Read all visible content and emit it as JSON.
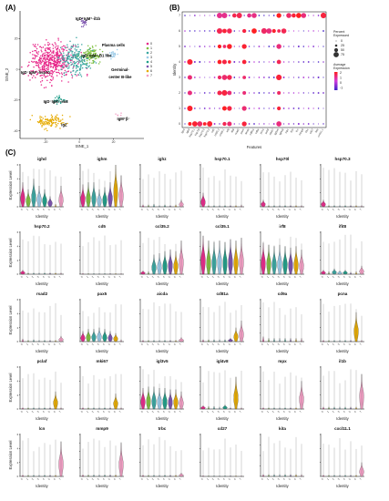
{
  "figure": {
    "panels": {
      "a": "(A)",
      "b": "(B)",
      "c": "(C)"
    }
  },
  "colors": {
    "clusters": [
      "#e7298a",
      "#7fbf3f",
      "#3aa7a1",
      "#9bcbe8",
      "#1f9e89",
      "#7b52ae",
      "#e6ab02",
      "#f29ec4"
    ],
    "expr_low": "#3b22c8",
    "expr_high": "#ff1f1f"
  },
  "chart_data": [
    {
      "type": "scatter",
      "panel": "A",
      "xlabel": "tSNE_1",
      "ylabel": "tSNE_2",
      "x_ticks": [
        "-20",
        "0",
        "20"
      ],
      "y_ticks": [
        "20",
        "0",
        "-20",
        "-40"
      ],
      "x_tick_values": [
        -20,
        0,
        20
      ],
      "y_tick_values": [
        20,
        0,
        -20,
        -40
      ],
      "xlim": [
        -35,
        38
      ],
      "ylim": [
        -45,
        38
      ],
      "legend_title": "",
      "legend": [
        "0",
        "1",
        "2",
        "3",
        "4",
        "5",
        "6",
        "7"
      ],
      "cluster_labels": [
        {
          "text": "IgD⁺IgM⁺-il1b",
          "x": 5,
          "y": 32
        },
        {
          "text": "Plasma cells",
          "x": 20,
          "y": 15
        },
        {
          "text": "IgD⁻IgM⁺-B1 like",
          "x": 10,
          "y": 8
        },
        {
          "text": "IgD⁻IgM⁺-hsp70",
          "x": -26,
          "y": -3
        },
        {
          "text": "Germinal-",
          "x": 24,
          "y": -1
        },
        {
          "text": "center B-like",
          "x": 24,
          "y": -6
        },
        {
          "text": "IgD⁻IgM⁻-im8",
          "x": -14,
          "y": -22
        },
        {
          "text": "IgM⁺β⁻",
          "x": 26,
          "y": -33
        },
        {
          "text": "IgZ",
          "x": -9,
          "y": -37
        }
      ],
      "clusters": [
        {
          "name": "0",
          "cx": -16,
          "cy": 5,
          "sx": 11,
          "sy": 10,
          "n": 480
        },
        {
          "name": "1",
          "cx": 6,
          "cy": 9,
          "sx": 5,
          "sy": 4.5,
          "n": 110
        },
        {
          "name": "2",
          "cx": -2,
          "cy": 6,
          "sx": 8,
          "sy": 8,
          "n": 200
        },
        {
          "name": "3",
          "cx": 20,
          "cy": 10,
          "sx": 2.5,
          "sy": 2.5,
          "n": 25
        },
        {
          "name": "4",
          "cx": -12,
          "cy": -20,
          "sx": 4,
          "sy": 2,
          "n": 25
        },
        {
          "name": "5",
          "cx": 3,
          "cy": 30,
          "sx": 2,
          "sy": 2.5,
          "n": 20
        },
        {
          "name": "6",
          "cx": -17,
          "cy": -34,
          "sx": 7,
          "sy": 4,
          "n": 110
        },
        {
          "name": "7",
          "cx": 23,
          "cy": -30,
          "sx": 1.5,
          "sy": 1.5,
          "n": 5
        }
      ]
    },
    {
      "type": "dot",
      "panel": "B",
      "xlabel": "Features",
      "ylabel": "Identity",
      "identities": [
        "0",
        "1",
        "2",
        "3",
        "4",
        "5",
        "6",
        "7"
      ],
      "features": [
        "igmt",
        "ighd",
        "hsp70.1",
        "hsp70l",
        "hsp70.3",
        "hsp70.2",
        "cd5",
        "ccl35.2",
        "ccl35.1",
        "irf8",
        "ifit8",
        "rsad2",
        "pax5",
        "aicda",
        "cd81a",
        "cd9a",
        "pcna",
        "pclaf",
        "mki67",
        "igl3v5",
        "igl4v8",
        "mpx",
        "il1b",
        "lcn",
        "mmp9",
        "trbc",
        "cd27",
        "kita",
        "cxcl11.1"
      ],
      "legend": {
        "percent_title_1": "Percent",
        "percent_title_2": "Expressed",
        "percent_labels": [
          "0",
          "25",
          "50",
          "75"
        ],
        "avg_title_1": "Average",
        "avg_title_2": "Expression",
        "avg_labels": [
          "2",
          "1",
          "0",
          "-1"
        ]
      }
    },
    {
      "type": "violin",
      "panel": "C",
      "xlabel": "Identity",
      "ylabel": "Expression Level",
      "identities": [
        "0",
        "1",
        "2",
        "3",
        "4",
        "5",
        "6",
        "7"
      ],
      "rows": [
        {
          "y_ticks": [
            "0",
            "2",
            "4",
            "6"
          ],
          "genes": [
            {
              "name": "ighd",
              "ymax": 6,
              "peaks": [
                3.5,
                2.5,
                4.0,
                3.0,
                2.5,
                1.5,
                0.4,
                3.0
              ]
            },
            {
              "name": "ighm",
              "ymax": 6,
              "peaks": [
                3.2,
                3.5,
                3.5,
                2.5,
                2.8,
                3.5,
                6.0,
                4.5
              ]
            },
            {
              "name": "ighz",
              "ymax": 6,
              "peaks": [
                0.3,
                0.3,
                0.4,
                0.2,
                0.3,
                0.2,
                0.3,
                1.0
              ]
            },
            {
              "name": "hsp70.1",
              "ymax": 6,
              "peaks": [
                2.0,
                0.2,
                0.2,
                0.2,
                0.2,
                0.2,
                0.2,
                0.3
              ]
            },
            {
              "name": "hsp70l",
              "ymax": 6,
              "peaks": [
                1.0,
                0.2,
                0.2,
                0.2,
                0.2,
                0.2,
                0.2,
                0.2
              ]
            },
            {
              "name": "hsp70.3",
              "ymax": 6,
              "peaks": [
                1.0,
                0.2,
                0.2,
                0.2,
                0.2,
                0.2,
                0.2,
                0.2
              ]
            }
          ]
        },
        {
          "y_ticks": [
            "0",
            "2",
            "4",
            "6"
          ],
          "genes": [
            {
              "name": "hsp70.2",
              "ymax": 6,
              "peaks": [
                0.6,
                0.2,
                0.2,
                0.2,
                0.2,
                0.2,
                0.2,
                0.2
              ]
            },
            {
              "name": "cd5",
              "ymax": 6,
              "peaks": [
                0.1,
                0.1,
                0.1,
                0.1,
                0.1,
                0.1,
                0.1,
                0.1
              ]
            },
            {
              "name": "ccl35.2",
              "ymax": 6,
              "peaks": [
                0.5,
                0.4,
                2.8,
                3.0,
                3.3,
                3.5,
                3.3,
                4.8
              ]
            },
            {
              "name": "ccl35.1",
              "ymax": 6,
              "peaks": [
                5.5,
                4.8,
                4.6,
                4.8,
                4.6,
                5.0,
                4.8,
                5.2
              ]
            },
            {
              "name": "irf8",
              "ymax": 6,
              "peaks": [
                4.5,
                4.2,
                4.0,
                4.2,
                4.0,
                3.8,
                4.0,
                3.5
              ]
            },
            {
              "name": "ifit8",
              "ymax": 6,
              "peaks": [
                0.6,
                0.4,
                0.8,
                0.5,
                0.6,
                0.3,
                0.4,
                1.2
              ]
            }
          ]
        },
        {
          "y_ticks": [
            "0",
            "2",
            "4",
            "6"
          ],
          "genes": [
            {
              "name": "rsad2",
              "ymax": 6,
              "peaks": [
                0.4,
                0.2,
                0.3,
                0.2,
                0.2,
                0.2,
                0.2,
                0.8
              ]
            },
            {
              "name": "pax5",
              "ymax": 6,
              "peaks": [
                1.5,
                1.8,
                1.8,
                2.0,
                1.8,
                1.5,
                1.2,
                0.3
              ]
            },
            {
              "name": "aicda",
              "ymax": 6,
              "peaks": [
                0.2,
                0.2,
                0.2,
                0.2,
                0.2,
                0.2,
                0.2,
                0.6
              ]
            },
            {
              "name": "cd81a",
              "ymax": 6,
              "peaks": [
                0.3,
                0.3,
                0.3,
                0.3,
                0.3,
                0.5,
                2.0,
                3.0
              ]
            },
            {
              "name": "cd9a",
              "ymax": 2.5,
              "peaks": [
                0.3,
                0.2,
                0.2,
                0.2,
                0.2,
                0.2,
                0.2,
                0.2
              ]
            },
            {
              "name": "pcna",
              "ymax": 6,
              "peaks": [
                0.2,
                0.2,
                0.2,
                0.2,
                0.2,
                0.2,
                4.2,
                0.2
              ]
            }
          ]
        },
        {
          "y_ticks": [
            "0",
            "2",
            "4",
            "6"
          ],
          "genes": [
            {
              "name": "pclaf",
              "ymax": 6,
              "peaks": [
                0.2,
                0.2,
                0.2,
                0.2,
                0.2,
                0.2,
                2.5,
                0.2
              ]
            },
            {
              "name": "mki67",
              "ymax": 6,
              "peaks": [
                0.2,
                0.2,
                0.2,
                0.2,
                0.2,
                0.2,
                2.2,
                0.2
              ]
            },
            {
              "name": "igl3v5",
              "ymax": 6,
              "peaks": [
                3.0,
                3.2,
                3.2,
                3.0,
                3.0,
                2.8,
                2.8,
                2.5
              ]
            },
            {
              "name": "igl4v8",
              "ymax": 6,
              "peaks": [
                0.5,
                0.4,
                0.4,
                0.3,
                0.6,
                0.2,
                4.6,
                0.2
              ]
            },
            {
              "name": "mpx",
              "ymax": 6,
              "peaks": [
                0.2,
                0.2,
                0.2,
                0.2,
                0.2,
                0.2,
                0.2,
                4.0
              ]
            },
            {
              "name": "il1b",
              "ymax": 6,
              "peaks": [
                0.3,
                0.3,
                0.3,
                0.3,
                0.3,
                0.3,
                0.3,
                5.0
              ]
            }
          ]
        },
        {
          "y_ticks": [
            "0",
            "2",
            "4",
            "6"
          ],
          "genes": [
            {
              "name": "lcn",
              "ymax": 6,
              "peaks": [
                0.2,
                0.2,
                0.2,
                0.2,
                0.2,
                0.2,
                0.2,
                5.0
              ]
            },
            {
              "name": "mmp9",
              "ymax": 5,
              "peaks": [
                0.2,
                0.2,
                0.2,
                0.2,
                0.2,
                0.2,
                0.2,
                4.0
              ]
            },
            {
              "name": "trbc",
              "ymax": 6,
              "peaks": [
                0.2,
                0.2,
                0.2,
                0.2,
                0.2,
                0.2,
                0.2,
                0.5
              ]
            },
            {
              "name": "cd27",
              "ymax": 6,
              "peaks": [
                0.1,
                0.1,
                0.1,
                0.1,
                0.1,
                0.1,
                0.1,
                0.1
              ]
            },
            {
              "name": "kita",
              "ymax": 2,
              "peaks": [
                0.1,
                0.1,
                0.1,
                0.1,
                0.1,
                0.1,
                0.1,
                0.1
              ]
            },
            {
              "name": "cxcl11.1",
              "ymax": 6,
              "peaks": [
                0.2,
                0.2,
                0.2,
                0.2,
                0.2,
                0.2,
                0.2,
                2.0
              ]
            }
          ]
        }
      ]
    }
  ]
}
